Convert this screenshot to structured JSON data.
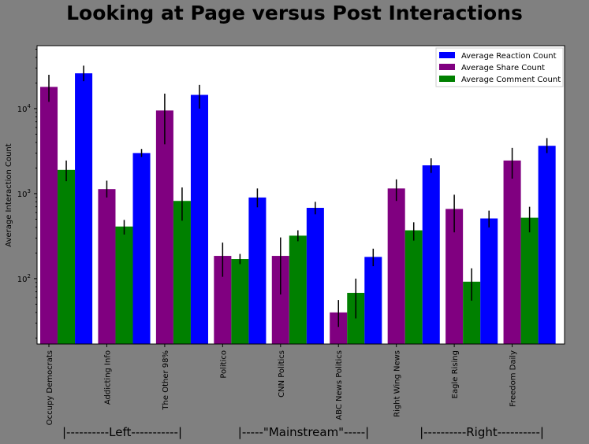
{
  "chart_data": {
    "type": "bar",
    "title": "Looking at Page versus Post Interactions",
    "ylabel": "Average Interaction Count",
    "xlabel": "",
    "yscale": "log",
    "ylim": [
      17,
      55000
    ],
    "y_ticks": [
      {
        "value": 100,
        "base": "10",
        "exp": "2"
      },
      {
        "value": 1000,
        "base": "10",
        "exp": "3"
      },
      {
        "value": 10000,
        "base": "10",
        "exp": "4"
      }
    ],
    "categories": [
      "Occupy Democrats",
      "Addicting Info",
      "The Other 98%",
      "Politico",
      "CNN Politics",
      "ABC News Politics",
      "Right Wing News",
      "Eagle Rising",
      "Freedom Daily"
    ],
    "series": [
      {
        "name": "Average Share Count",
        "color": "#800080",
        "values": [
          18000,
          1130,
          9500,
          185,
          185,
          40,
          1150,
          660,
          2450
        ],
        "err_low": [
          12000,
          900,
          3800,
          105,
          65,
          27,
          820,
          350,
          1500
        ],
        "err_high": [
          25000,
          1420,
          15000,
          265,
          305,
          56,
          1470,
          970,
          3450
        ]
      },
      {
        "name": "Average Comment Count",
        "color": "#008000",
        "values": [
          1900,
          410,
          820,
          170,
          320,
          68,
          370,
          92,
          520
        ],
        "err_low": [
          1400,
          330,
          480,
          148,
          275,
          34,
          280,
          55,
          350
        ],
        "err_high": [
          2450,
          490,
          1180,
          195,
          370,
          100,
          460,
          132,
          700
        ]
      },
      {
        "name": "Average Reaction Count",
        "color": "#0000ff",
        "values": [
          26000,
          3000,
          14500,
          900,
          680,
          180,
          2150,
          510,
          3650
        ],
        "err_low": [
          21000,
          2700,
          10000,
          690,
          570,
          140,
          1750,
          400,
          3000
        ],
        "err_high": [
          32000,
          3350,
          19000,
          1150,
          800,
          225,
          2600,
          630,
          4500
        ]
      }
    ],
    "legend": {
      "placement": "top-right",
      "entries": [
        {
          "label": "Average Reaction Count",
          "color": "#0000ff"
        },
        {
          "label": "Average Share Count",
          "color": "#800080"
        },
        {
          "label": "Average Comment Count",
          "color": "#008000"
        }
      ]
    },
    "annotations": [
      {
        "text": "|----------Left-----------|"
      },
      {
        "text": "|-----\"Mainstream\"-----|"
      },
      {
        "text": "|----------Right----------|"
      }
    ],
    "grid": false
  }
}
